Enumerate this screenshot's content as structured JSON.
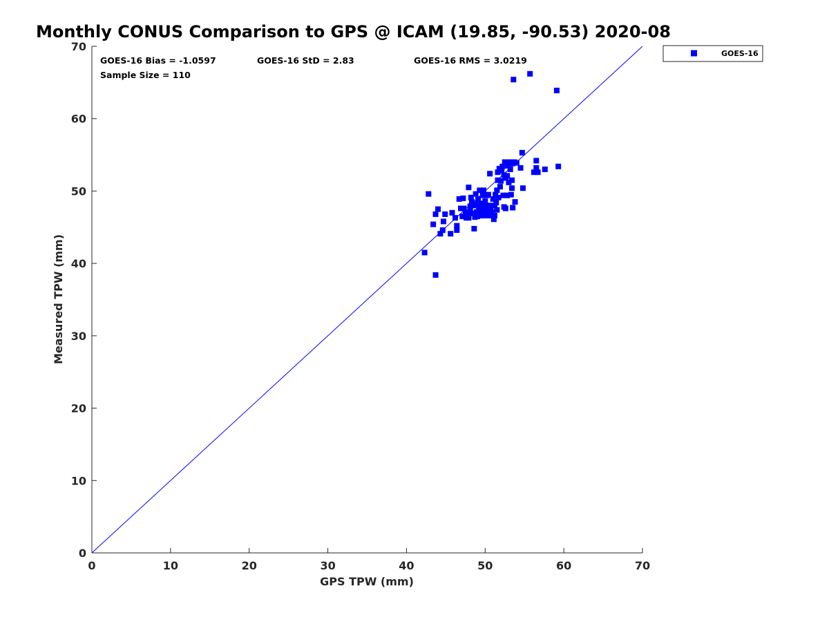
{
  "chart_data": {
    "type": "scatter",
    "title": "Monthly CONUS Comparison to GPS @ ICAM (19.85, -90.53) 2020-08",
    "xlabel": "GPS TPW (mm)",
    "ylabel": "Measured TPW (mm)",
    "xlim": [
      0,
      70
    ],
    "ylim": [
      0,
      70
    ],
    "x_ticks": [
      "0",
      "10",
      "20",
      "30",
      "40",
      "50",
      "60",
      "70"
    ],
    "y_ticks": [
      "0",
      "10",
      "20",
      "30",
      "40",
      "50",
      "60",
      "70"
    ],
    "grid": false,
    "legend_position": "outside-top-right",
    "reference_line": "1:1",
    "annotations": {
      "bias": "GOES-16 Bias = -1.0597",
      "std": "GOES-16 StD = 2.83",
      "rms": "GOES-16 RMS = 3.0219",
      "sample": "Sample Size = 110"
    },
    "series": [
      {
        "name": "GOES-16",
        "color": "#0000ff",
        "marker": "square",
        "points": [
          [
            42.3,
            41.5
          ],
          [
            43.7,
            38.4
          ],
          [
            42.8,
            49.6
          ],
          [
            43.4,
            45.4
          ],
          [
            43.7,
            46.8
          ],
          [
            44.0,
            47.5
          ],
          [
            44.3,
            44.1
          ],
          [
            44.6,
            44.6
          ],
          [
            44.7,
            45.8
          ],
          [
            44.9,
            46.8
          ],
          [
            45.6,
            44.1
          ],
          [
            45.8,
            47.0
          ],
          [
            46.2,
            46.3
          ],
          [
            46.4,
            45.2
          ],
          [
            46.4,
            44.6
          ],
          [
            46.7,
            48.9
          ],
          [
            46.9,
            47.6
          ],
          [
            47.1,
            46.5
          ],
          [
            47.2,
            49.0
          ],
          [
            47.3,
            47.6
          ],
          [
            47.5,
            47.1
          ],
          [
            47.7,
            46.7
          ],
          [
            47.9,
            50.5
          ],
          [
            47.9,
            46.3
          ],
          [
            48.1,
            47.4
          ],
          [
            48.2,
            49.1
          ],
          [
            48.3,
            46.9
          ],
          [
            48.3,
            48.5
          ],
          [
            48.5,
            48.0
          ],
          [
            48.6,
            44.8
          ],
          [
            48.7,
            46.4
          ],
          [
            48.8,
            48.2
          ],
          [
            48.8,
            49.6
          ],
          [
            48.9,
            47.1
          ],
          [
            49.0,
            46.5
          ],
          [
            49.1,
            48.9
          ],
          [
            49.2,
            47.7
          ],
          [
            49.3,
            50.1
          ],
          [
            49.3,
            46.8
          ],
          [
            49.4,
            47.3
          ],
          [
            49.5,
            48.3
          ],
          [
            49.6,
            47.0
          ],
          [
            49.7,
            49.4
          ],
          [
            49.7,
            46.6
          ],
          [
            49.8,
            50.1
          ],
          [
            49.8,
            47.9
          ],
          [
            49.9,
            47.4
          ],
          [
            50.0,
            48.6
          ],
          [
            50.0,
            46.8
          ],
          [
            50.1,
            47.6
          ],
          [
            50.2,
            49.4
          ],
          [
            50.3,
            47.1
          ],
          [
            50.4,
            46.6
          ],
          [
            50.5,
            48.0
          ],
          [
            50.6,
            52.4
          ],
          [
            50.7,
            47.7
          ],
          [
            50.8,
            46.7
          ],
          [
            51.0,
            48.9
          ],
          [
            51.1,
            46.1
          ],
          [
            51.2,
            46.6
          ],
          [
            51.3,
            49.5
          ],
          [
            51.4,
            48.4
          ],
          [
            51.5,
            50.1
          ],
          [
            51.5,
            47.4
          ],
          [
            51.6,
            51.5
          ],
          [
            51.6,
            52.6
          ],
          [
            51.7,
            49.1
          ],
          [
            51.8,
            53.1
          ],
          [
            51.9,
            50.6
          ],
          [
            52.0,
            51.4
          ],
          [
            52.1,
            52.8
          ],
          [
            52.2,
            53.4
          ],
          [
            52.3,
            49.4
          ],
          [
            52.4,
            47.8
          ],
          [
            52.4,
            52.2
          ],
          [
            52.5,
            54.0
          ],
          [
            52.6,
            51.8
          ],
          [
            52.6,
            47.6
          ],
          [
            52.8,
            49.4
          ],
          [
            52.9,
            53.5
          ],
          [
            53.0,
            51.2
          ],
          [
            53.1,
            54.0
          ],
          [
            53.2,
            53.0
          ],
          [
            53.3,
            49.5
          ],
          [
            53.4,
            50.4
          ],
          [
            53.4,
            51.5
          ],
          [
            53.5,
            53.8
          ],
          [
            53.5,
            47.7
          ],
          [
            53.6,
            65.4
          ],
          [
            53.7,
            54.0
          ],
          [
            53.8,
            48.5
          ],
          [
            54.0,
            53.9
          ],
          [
            54.5,
            53.2
          ],
          [
            54.7,
            55.3
          ],
          [
            54.8,
            50.4
          ],
          [
            55.7,
            66.2
          ],
          [
            56.2,
            52.6
          ],
          [
            56.5,
            54.2
          ],
          [
            56.5,
            53.2
          ],
          [
            56.7,
            52.6
          ],
          [
            57.6,
            53.0
          ],
          [
            59.3,
            53.4
          ],
          [
            59.1,
            63.9
          ],
          [
            51.2,
            48.0
          ],
          [
            49.6,
            46.9
          ],
          [
            50.4,
            49.5
          ],
          [
            48.1,
            47.9
          ],
          [
            52.8,
            52.1
          ],
          [
            47.6,
            46.3
          ],
          [
            50.9,
            47.1
          ]
        ]
      }
    ]
  }
}
